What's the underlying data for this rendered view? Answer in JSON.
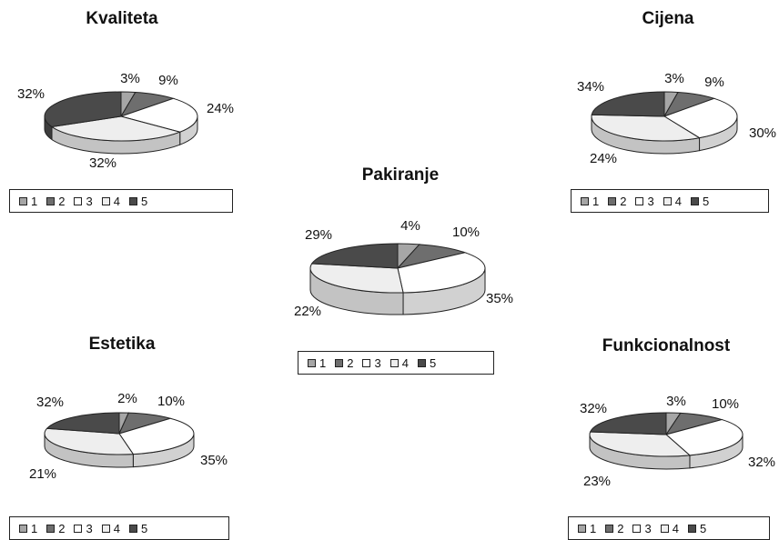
{
  "colors": {
    "1": "#a6a6a6",
    "2": "#6e6e6e",
    "3": "#ffffff",
    "4": "#eeeeee",
    "5": "#4a4a4a"
  },
  "legend_labels": [
    "1",
    "2",
    "3",
    "4",
    "5"
  ],
  "chart_data": [
    {
      "id": "kvaliteta",
      "type": "pie",
      "title": "Kvaliteta",
      "categories": [
        "1",
        "2",
        "3",
        "4",
        "5"
      ],
      "values": [
        3,
        9,
        24,
        32,
        32
      ],
      "labels": [
        "3%",
        "9%",
        "24%",
        "32%",
        "32%"
      ]
    },
    {
      "id": "cijena",
      "type": "pie",
      "title": "Cijena",
      "categories": [
        "1",
        "2",
        "3",
        "4",
        "5"
      ],
      "values": [
        3,
        9,
        30,
        34,
        24
      ],
      "labels": [
        "3%",
        "9%",
        "30%",
        "34%",
        "24%"
      ]
    },
    {
      "id": "pakiranje",
      "type": "pie",
      "title": "Pakiranje",
      "categories": [
        "1",
        "2",
        "3",
        "4",
        "5"
      ],
      "values": [
        4,
        10,
        35,
        29,
        22
      ],
      "labels": [
        "4%",
        "10%",
        "35%",
        "29%",
        "22%"
      ]
    },
    {
      "id": "estetika",
      "type": "pie",
      "title": "Estetika",
      "categories": [
        "1",
        "2",
        "3",
        "4",
        "5"
      ],
      "values": [
        2,
        10,
        35,
        32,
        21
      ],
      "labels": [
        "2%",
        "10%",
        "35%",
        "32%",
        "21%"
      ]
    },
    {
      "id": "funkcionalnost",
      "type": "pie",
      "title": "Funkcionalnost",
      "categories": [
        "1",
        "2",
        "3",
        "4",
        "5"
      ],
      "values": [
        3,
        10,
        32,
        32,
        23
      ],
      "labels": [
        "3%",
        "10%",
        "32%",
        "32%",
        "23%"
      ]
    }
  ]
}
